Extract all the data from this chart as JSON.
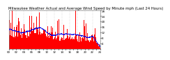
{
  "title": "Milwaukee Weather Actual and Average Wind Speed by Minute mph (Last 24 Hours)",
  "title_fontsize": 3.8,
  "background_color": "#ffffff",
  "plot_background": "#ffffff",
  "n_points": 1440,
  "ylim": [
    0,
    28
  ],
  "yticks": [
    4,
    8,
    12,
    16,
    20,
    24,
    28
  ],
  "ylabel_fontsize": 3.0,
  "xlabel_fontsize": 2.8,
  "bar_color": "#ff0000",
  "line_color": "#0000cc",
  "dot_color": "#0000ff",
  "grid_color": "#bbbbbb",
  "seed": 42
}
